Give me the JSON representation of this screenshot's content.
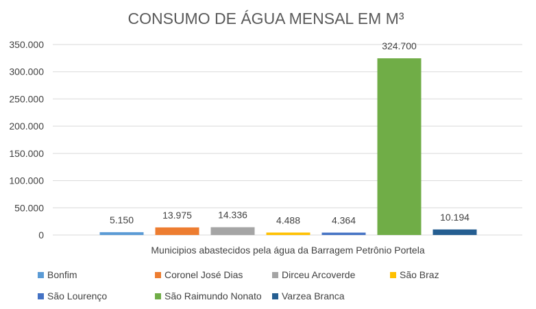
{
  "chart_data": {
    "type": "bar",
    "title": "CONSUMO DE ÁGUA MENSAL EM M³",
    "xlabel": "Municipios abastecidos pela água da Barragem Petrônio Portela",
    "ylabel": "",
    "ylim": [
      0,
      350000
    ],
    "yticks": [
      0,
      50000,
      100000,
      150000,
      200000,
      250000,
      300000,
      350000
    ],
    "ytick_labels": [
      "0",
      "50.000",
      "100.000",
      "150.000",
      "200.000",
      "250.000",
      "300.000",
      "350.000"
    ],
    "grid": true,
    "legend_position": "bottom",
    "series": [
      {
        "name": "Bonfim",
        "value": 5150,
        "label": "5.150",
        "color": "#5b9bd5"
      },
      {
        "name": "Coronel José Dias",
        "value": 13975,
        "label": "13.975",
        "color": "#ed7d31"
      },
      {
        "name": "Dirceu Arcoverde",
        "value": 14336,
        "label": "14.336",
        "color": "#a5a5a5"
      },
      {
        "name": "São Braz",
        "value": 4488,
        "label": "4.488",
        "color": "#ffc000"
      },
      {
        "name": "São Lourenço",
        "value": 4364,
        "label": "4.364",
        "color": "#4472c4"
      },
      {
        "name": "São Raimundo Nonato",
        "value": 324700,
        "label": "324.700",
        "color": "#70ad47"
      },
      {
        "name": "Varzea Branca",
        "value": 10194,
        "label": "10.194",
        "color": "#255e91"
      }
    ]
  }
}
